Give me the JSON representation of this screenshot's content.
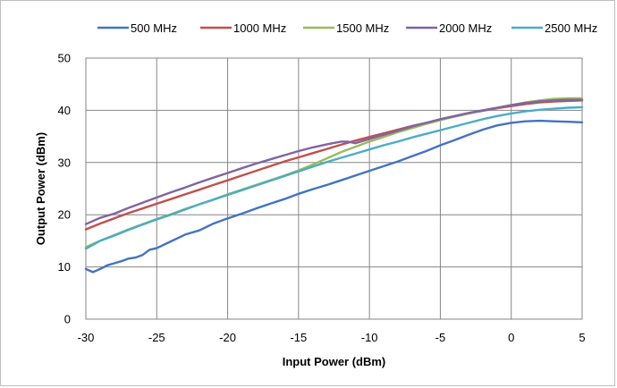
{
  "chart_data": {
    "type": "line",
    "title": "",
    "xlabel": "Input Power (dBm)",
    "ylabel": "Output Power (dBm)",
    "xlim": [
      -30,
      5
    ],
    "ylim": [
      0,
      50
    ],
    "xticks": [
      -30,
      -25,
      -20,
      -15,
      -10,
      -5,
      0,
      5
    ],
    "yticks": [
      0,
      10,
      20,
      30,
      40,
      50
    ],
    "grid": true,
    "legend_position": "top",
    "series": [
      {
        "name": "500 MHz",
        "color": "#4472c4",
        "x": [
          -30,
          -29.5,
          -29,
          -28.5,
          -28,
          -27.5,
          -27,
          -26.5,
          -26,
          -25.5,
          -25,
          -24,
          -23,
          -22,
          -21,
          -20,
          -19,
          -18,
          -17,
          -16,
          -15,
          -14,
          -13,
          -12,
          -11,
          -10,
          -9,
          -8,
          -7,
          -6,
          -5,
          -4,
          -3,
          -2,
          -1,
          0,
          1,
          2,
          3,
          4,
          5
        ],
        "y": [
          9.6,
          9.0,
          9.6,
          10.3,
          10.7,
          11.1,
          11.6,
          11.8,
          12.3,
          13.3,
          13.6,
          14.9,
          16.2,
          17.0,
          18.3,
          19.3,
          20.2,
          21.2,
          22.1,
          23.0,
          24.0,
          24.9,
          25.7,
          26.6,
          27.5,
          28.4,
          29.3,
          30.2,
          31.2,
          32.2,
          33.3,
          34.3,
          35.3,
          36.3,
          37.1,
          37.6,
          37.9,
          38.0,
          37.9,
          37.8,
          37.7
        ]
      },
      {
        "name": "1000 MHz",
        "color": "#c0504d",
        "x": [
          -30,
          -29,
          -28,
          -27,
          -26,
          -25,
          -24,
          -23,
          -22,
          -21,
          -20,
          -19,
          -18,
          -17,
          -16,
          -15,
          -14,
          -13,
          -12,
          -11,
          -10,
          -9,
          -8,
          -7,
          -6,
          -5,
          -4,
          -3,
          -2,
          -1,
          0,
          1,
          2,
          3,
          4,
          5
        ],
        "y": [
          17.2,
          18.3,
          19.3,
          20.3,
          21.2,
          22.1,
          23.0,
          23.9,
          24.8,
          25.7,
          26.6,
          27.5,
          28.4,
          29.3,
          30.2,
          31.0,
          31.8,
          32.6,
          33.4,
          34.2,
          34.9,
          35.6,
          36.3,
          37.0,
          37.6,
          38.2,
          38.8,
          39.4,
          39.9,
          40.4,
          40.8,
          41.2,
          41.5,
          41.7,
          41.8,
          41.9
        ]
      },
      {
        "name": "1500 MHz",
        "color": "#9bbb59",
        "x": [
          -30,
          -29,
          -28,
          -27,
          -26,
          -25,
          -24,
          -23,
          -22,
          -21,
          -20,
          -19,
          -18,
          -17,
          -16,
          -15,
          -14,
          -13,
          -12,
          -11,
          -10,
          -9,
          -8,
          -7,
          -6,
          -5,
          -4,
          -3,
          -2,
          -1,
          0,
          1,
          2,
          3,
          4,
          5
        ],
        "y": [
          13.8,
          15.0,
          16.1,
          17.2,
          18.2,
          19.2,
          20.1,
          21.1,
          22.0,
          22.9,
          23.9,
          24.8,
          25.7,
          26.6,
          27.5,
          28.5,
          29.6,
          30.8,
          32.0,
          33.0,
          34.0,
          34.9,
          35.8,
          36.6,
          37.4,
          38.1,
          38.8,
          39.4,
          40.0,
          40.5,
          41.0,
          41.5,
          41.9,
          42.2,
          42.3,
          42.3
        ]
      },
      {
        "name": "2000 MHz",
        "color": "#8064a2",
        "x": [
          -30,
          -29,
          -28,
          -27,
          -26,
          -25,
          -24,
          -23,
          -22,
          -21,
          -20,
          -19,
          -18,
          -17,
          -16,
          -15,
          -14,
          -13,
          -12,
          -11.5,
          -11,
          -10,
          -9,
          -8,
          -7,
          -6,
          -5,
          -4,
          -3,
          -2,
          -1,
          0,
          1,
          2,
          3,
          4,
          5
        ],
        "y": [
          18.2,
          19.4,
          20.2,
          21.3,
          22.3,
          23.3,
          24.3,
          25.2,
          26.2,
          27.1,
          28.0,
          28.9,
          29.8,
          30.6,
          31.4,
          32.2,
          32.9,
          33.5,
          34.0,
          34.0,
          33.7,
          34.5,
          35.3,
          36.1,
          36.9,
          37.6,
          38.3,
          38.9,
          39.5,
          40.0,
          40.5,
          41.0,
          41.4,
          41.7,
          41.9,
          42.0,
          42.0
        ]
      },
      {
        "name": "2500 MHz",
        "color": "#4bacc6",
        "x": [
          -30,
          -29,
          -28,
          -27,
          -26,
          -25,
          -24,
          -23,
          -22,
          -21,
          -20,
          -19,
          -18,
          -17,
          -16,
          -15,
          -14,
          -13,
          -12,
          -11,
          -10,
          -9,
          -8,
          -7,
          -6,
          -5,
          -4,
          -3,
          -2,
          -1,
          0,
          1,
          2,
          3,
          4,
          5
        ],
        "y": [
          13.5,
          15.0,
          16.0,
          17.1,
          18.1,
          19.1,
          20.0,
          21.0,
          22.0,
          22.9,
          23.8,
          24.7,
          25.6,
          26.5,
          27.4,
          28.3,
          29.2,
          30.1,
          30.9,
          31.7,
          32.5,
          33.3,
          34.0,
          34.8,
          35.5,
          36.2,
          36.9,
          37.6,
          38.3,
          38.9,
          39.4,
          39.8,
          40.1,
          40.3,
          40.5,
          40.6
        ]
      }
    ]
  }
}
